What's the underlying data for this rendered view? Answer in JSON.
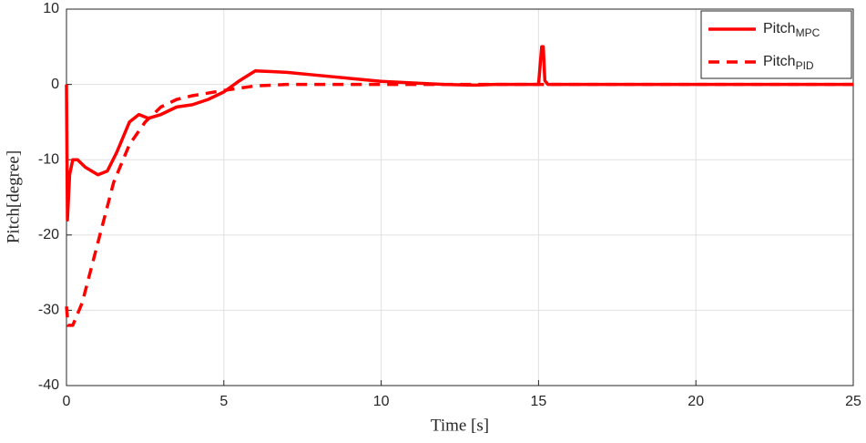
{
  "chart_data": {
    "type": "line",
    "xlabel": "Time [s]",
    "ylabel": "Pitch[degree]",
    "xlim": [
      0,
      25
    ],
    "xticks": [
      0,
      5,
      10,
      15,
      20,
      25
    ],
    "ylim": [
      -40,
      10
    ],
    "yticks": [
      -40,
      -30,
      -20,
      -10,
      0,
      10
    ],
    "grid": true,
    "legend": "upper right",
    "series": [
      {
        "name": "Pitch",
        "name_sub": "MPC",
        "color": "#ff0000",
        "line_style": "solid",
        "x": [
          0,
          0.03,
          0.1,
          0.2,
          0.35,
          0.6,
          1.0,
          1.3,
          1.6,
          2.0,
          2.3,
          2.6,
          3.0,
          3.5,
          4.0,
          4.5,
          5.0,
          5.5,
          6.0,
          6.5,
          7,
          8,
          9,
          10,
          11,
          12,
          13,
          13.6,
          14,
          15,
          15.1,
          15.15,
          15.2,
          15.3,
          16,
          18,
          20,
          25
        ],
        "values": [
          0,
          -18,
          -12,
          -10,
          -10,
          -11,
          -12,
          -11.5,
          -9,
          -5,
          -4,
          -4.5,
          -4,
          -3,
          -2.7,
          -2,
          -1,
          0.5,
          1.8,
          1.7,
          1.6,
          1.2,
          0.8,
          0.4,
          0.2,
          0,
          -0.1,
          0,
          0,
          0,
          5,
          5,
          0.5,
          0,
          0,
          0,
          0,
          0
        ]
      },
      {
        "name": "Pitch",
        "name_sub": "PID",
        "color": "#ff0000",
        "line_style": "dashed",
        "x": [
          0,
          0.05,
          0.2,
          0.5,
          1.0,
          1.5,
          2.0,
          2.5,
          3.0,
          3.5,
          4.0,
          5.0,
          6.0,
          7,
          10,
          25
        ],
        "values": [
          -29.5,
          -32,
          -32,
          -29,
          -21,
          -13,
          -8,
          -5,
          -3,
          -2,
          -1.5,
          -0.8,
          -0.2,
          0,
          0,
          0
        ]
      }
    ]
  }
}
